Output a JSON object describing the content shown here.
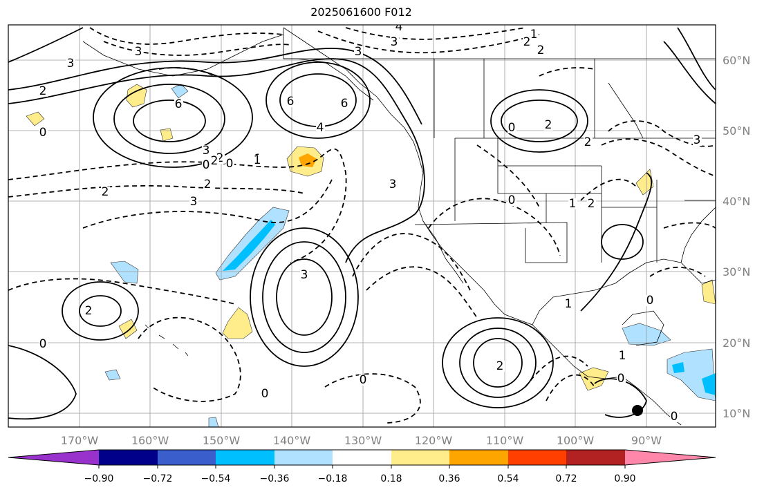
{
  "title": "2025061600 F012",
  "lat_labels": [
    "60°N",
    "50°N",
    "40°N",
    "30°N",
    "20°N",
    "10°N"
  ],
  "lon_labels": [
    "170°W",
    "160°W",
    "150°W",
    "140°W",
    "130°W",
    "120°W",
    "110°W",
    "100°W",
    "90°W"
  ],
  "colorbar": {
    "ticks": [
      "−0.90",
      "−0.72",
      "−0.54",
      "−0.36",
      "−0.18",
      "0.18",
      "0.36",
      "0.54",
      "0.72",
      "0.90"
    ],
    "colors": [
      "#9932cc",
      "#00008b",
      "#3a5fcd",
      "#00bfff",
      "#b0e2ff",
      "#ffffff",
      "#ffec8b",
      "#ffa500",
      "#ff3f00",
      "#b22222",
      "#ff88aa"
    ]
  },
  "contour_labels": [
    "4",
    "3",
    "1",
    "2",
    "2",
    "3",
    "3",
    "6",
    "3",
    "2",
    "2",
    "6",
    "6",
    "4",
    "3",
    "0",
    "0",
    "1",
    "2",
    "3",
    "2",
    "3",
    "0",
    "2",
    "0",
    "2",
    "2",
    "1",
    "3",
    "2",
    "0",
    "0",
    "2",
    "3",
    "1",
    "0",
    "0",
    "1",
    "0",
    "2",
    "1",
    "0",
    "0"
  ]
}
